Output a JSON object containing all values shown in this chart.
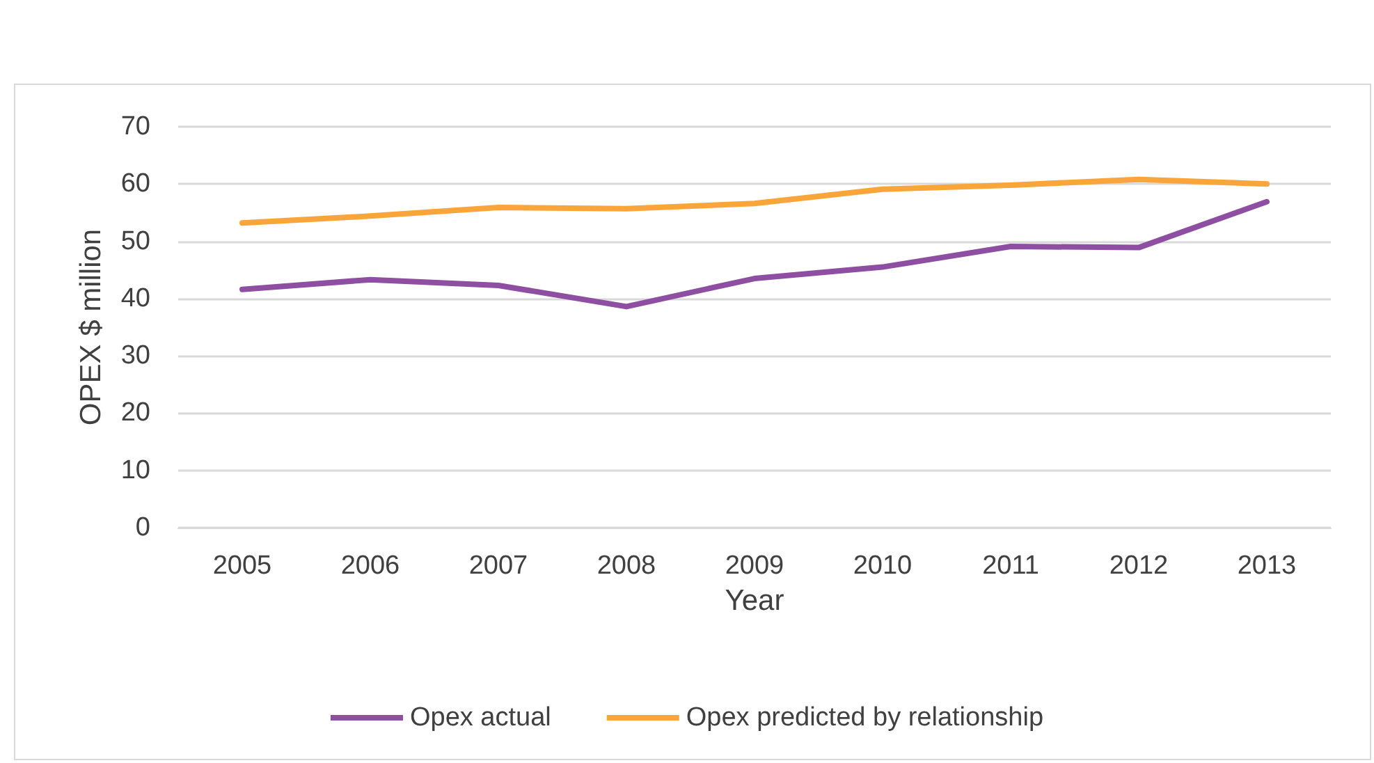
{
  "chart_data": {
    "type": "line",
    "xlabel": "Year",
    "ylabel": "OPEX $ million",
    "categories": [
      "2005",
      "2006",
      "2007",
      "2008",
      "2009",
      "2010",
      "2011",
      "2012",
      "2013"
    ],
    "series": [
      {
        "name": "Opex actual",
        "color": "#8e4fa3",
        "values": [
          41.6,
          43.3,
          42.3,
          38.6,
          43.5,
          45.5,
          49.1,
          48.9,
          56.9
        ]
      },
      {
        "name": "Opex predicted by relationship",
        "color": "#f9a53a",
        "values": [
          53.2,
          54.4,
          55.9,
          55.7,
          56.6,
          59.1,
          59.8,
          60.8,
          60.0
        ]
      }
    ],
    "ylim": [
      0,
      70
    ],
    "yticks": [
      0,
      10,
      20,
      30,
      40,
      50,
      60,
      70
    ],
    "grid": "y",
    "legend": "bottom",
    "marker": "none",
    "line_style": "solid"
  }
}
